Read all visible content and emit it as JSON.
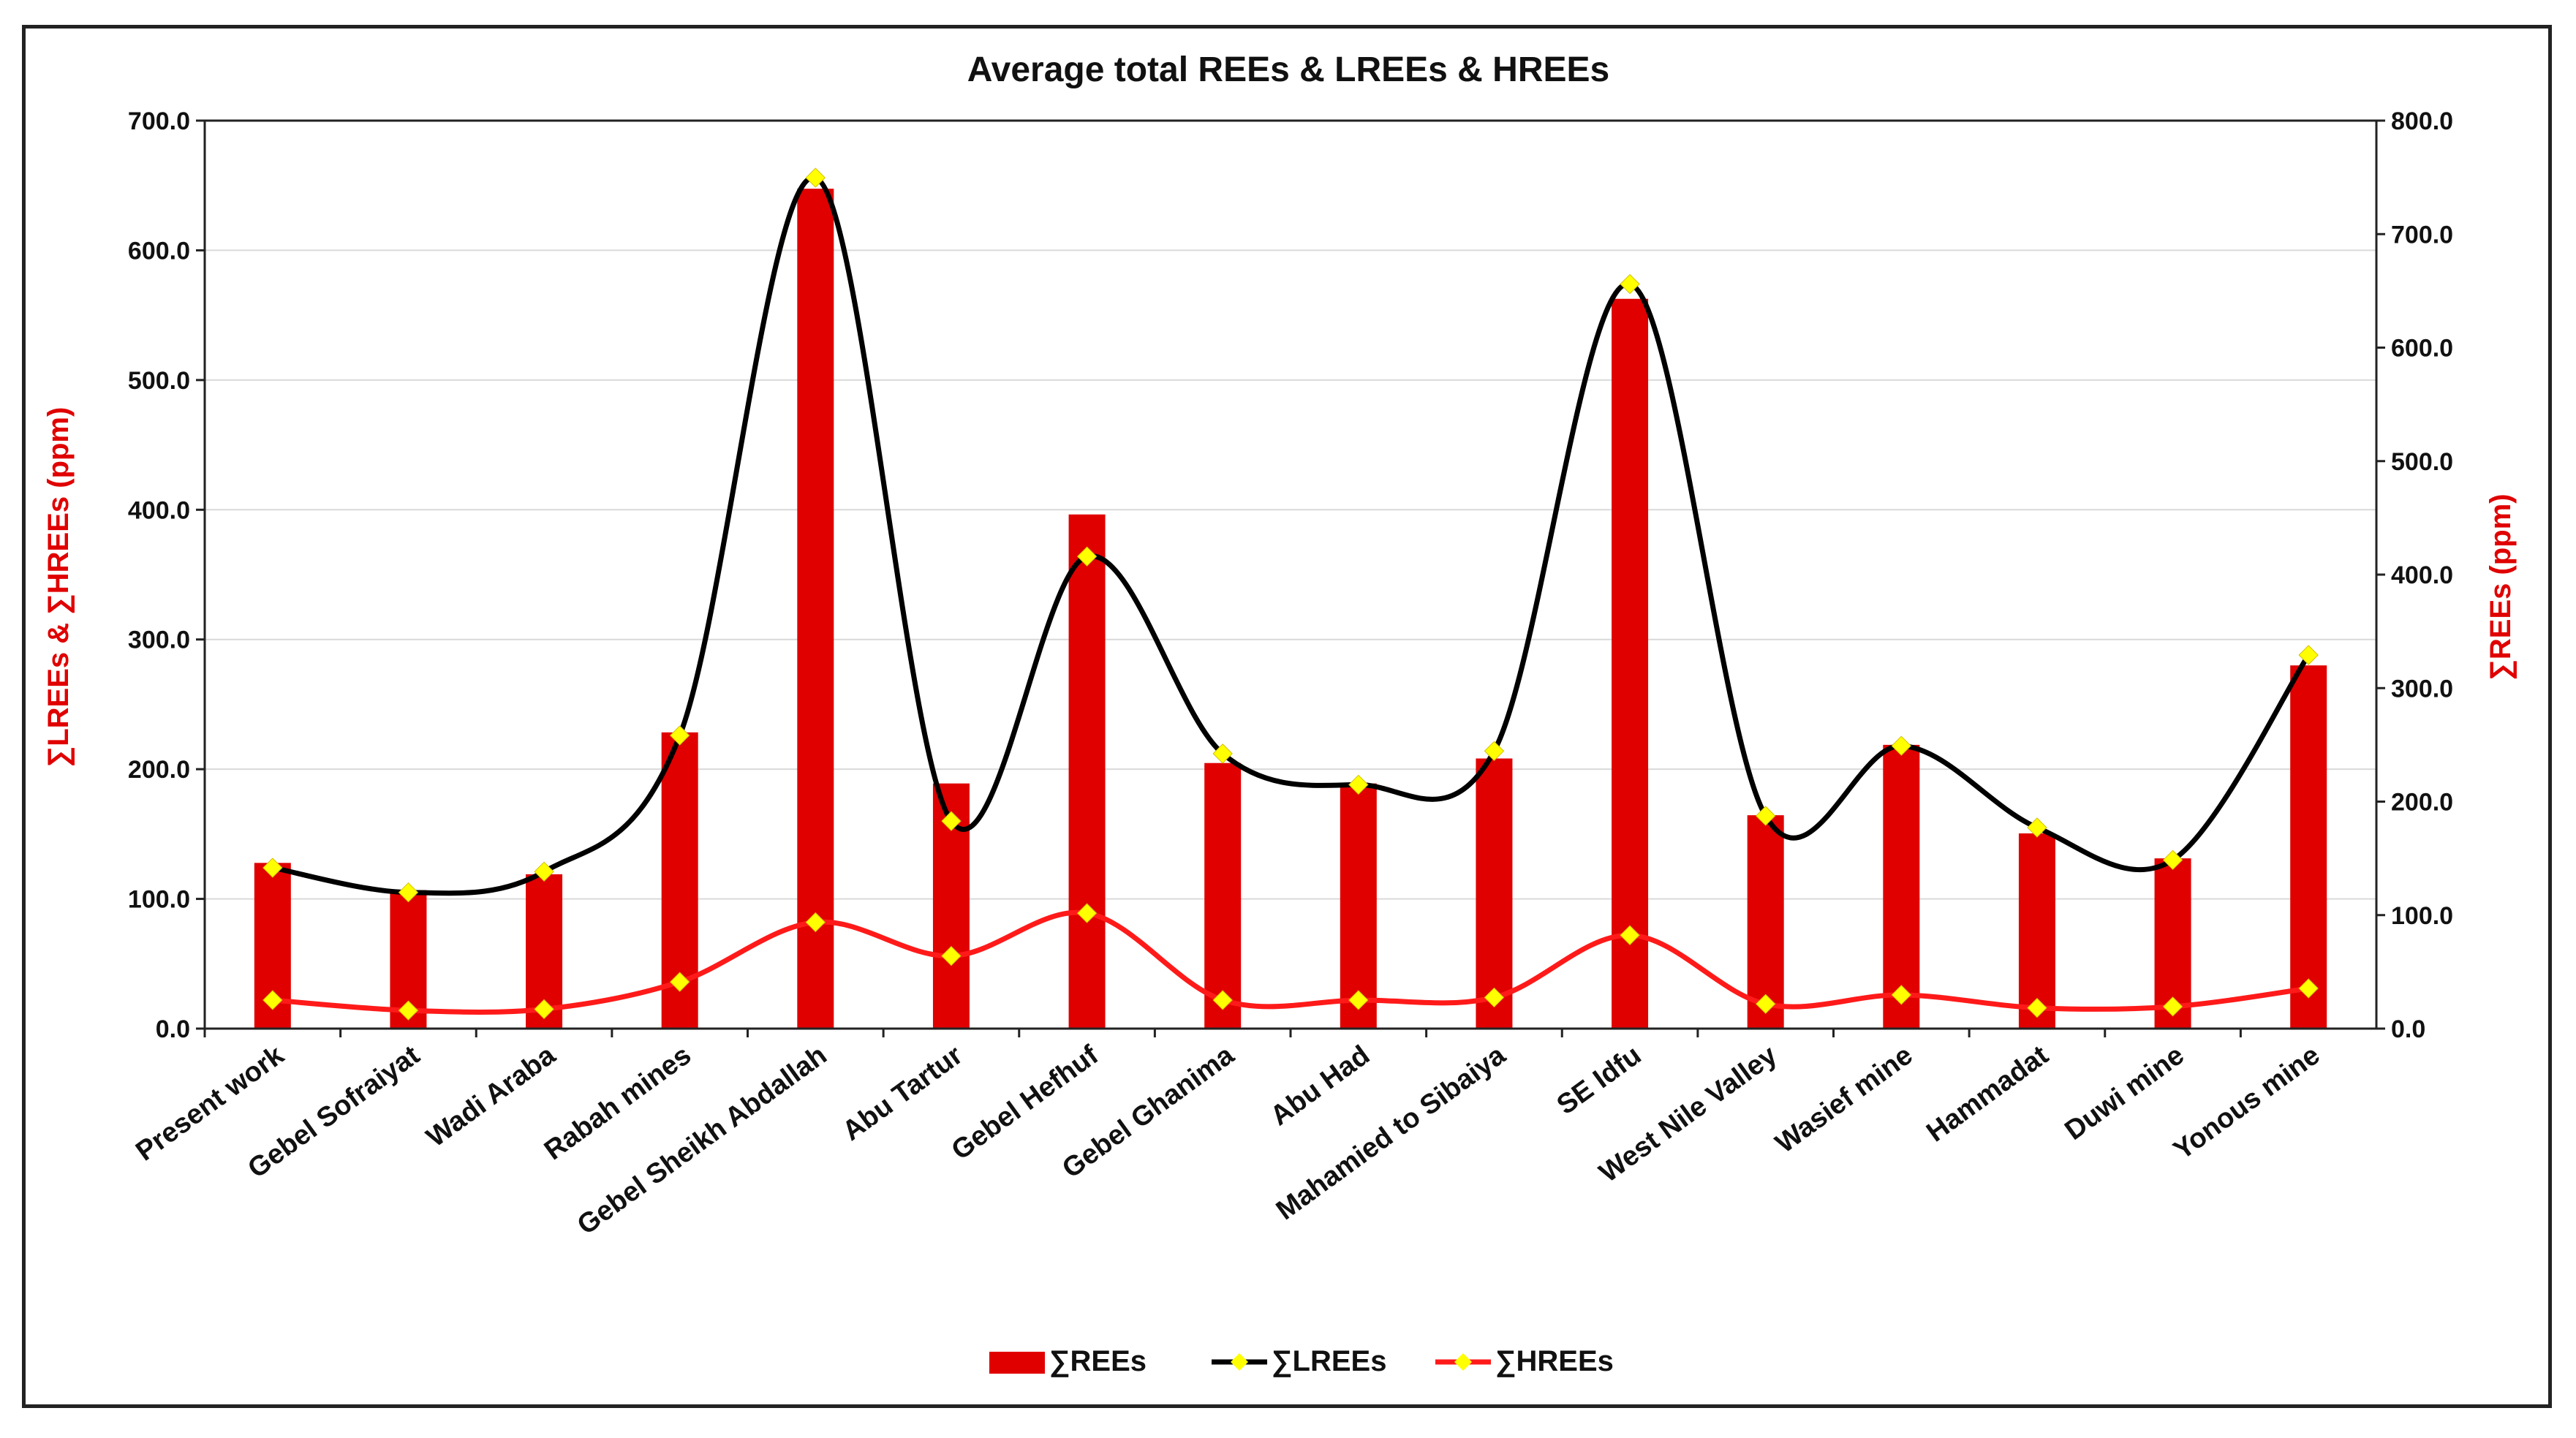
{
  "colors": {
    "rees_bar": "#E00000",
    "lrees_line": "#000000",
    "hrees_line": "#FF1A1A",
    "marker": "#FFFF00",
    "axis_label": "#E00000",
    "grid": "#D9D9D9"
  },
  "chart_data": {
    "type": "bar",
    "title": "Average total REEs & LREEs & HREEs",
    "categories": [
      "Present work",
      "Gebel Sofraiyat",
      "Wadi Araba",
      "Rabah mines",
      "Gebel Sheikh Abdallah",
      "Abu Tartur",
      "Gebel Hefhuf",
      "Gebel Ghanima",
      "Abu Had",
      "Mahamied to Sibaiya",
      "SE Idfu",
      "West Nile Valley",
      "Wasief mine",
      "Hammadat",
      "Duwi mine",
      "Yonous mine"
    ],
    "left_axis": {
      "label": "∑LREEs & ∑HREEs (ppm)",
      "range": [
        0,
        700
      ],
      "ticks": [
        "0.0",
        "100.0",
        "200.0",
        "300.0",
        "400.0",
        "500.0",
        "600.0",
        "700.0"
      ]
    },
    "right_axis": {
      "label": "∑REEs (ppm)",
      "range": [
        0,
        800
      ],
      "ticks": [
        "0.0",
        "100.0",
        "200.0",
        "300.0",
        "400.0",
        "500.0",
        "600.0",
        "700.0",
        "800.0"
      ]
    },
    "gridlines": true,
    "legend_position": "bottom-center",
    "series": [
      {
        "name": "∑REEs",
        "kind": "bar",
        "axis": "right",
        "values": [
          146,
          122,
          136,
          261,
          740,
          216,
          453,
          234,
          216,
          238,
          643,
          188,
          250,
          172,
          150,
          320
        ]
      },
      {
        "name": "∑LREEs",
        "kind": "line",
        "axis": "left",
        "values": [
          124,
          105,
          121,
          226,
          656,
          160,
          364,
          212,
          188,
          214,
          574,
          164,
          218,
          155,
          130,
          288
        ]
      },
      {
        "name": "∑HREEs",
        "kind": "line",
        "axis": "left",
        "values": [
          22,
          14,
          15,
          36,
          82,
          56,
          89,
          22,
          22,
          24,
          72,
          19,
          26,
          16,
          17,
          31
        ]
      }
    ]
  }
}
